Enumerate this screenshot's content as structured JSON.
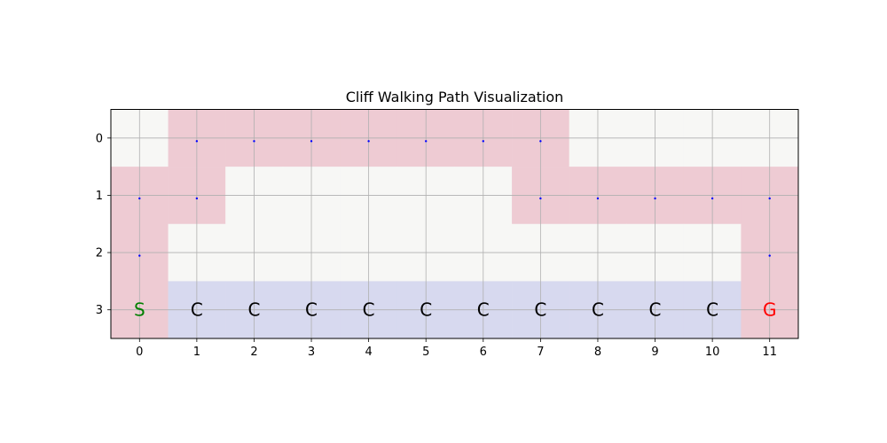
{
  "chart_data": {
    "type": "heatmap",
    "title": "Cliff Walking Path Visualization",
    "rows": 4,
    "cols": 12,
    "x_ticks": [
      "0",
      "1",
      "2",
      "3",
      "4",
      "5",
      "6",
      "7",
      "8",
      "9",
      "10",
      "11"
    ],
    "y_ticks": [
      "0",
      "1",
      "2",
      "3"
    ],
    "grid": true,
    "colors": {
      "empty": "#f7f7f5",
      "path": "#eecbd3",
      "cliff": "#d7d9ef",
      "start_text": "#008000",
      "goal_text": "#ff0000",
      "cliff_text": "#000000",
      "marker": "#0000ff",
      "grid": "#b0b0b0"
    },
    "cells": [
      [
        "empty",
        "path",
        "path",
        "path",
        "path",
        "path",
        "path",
        "path",
        "empty",
        "empty",
        "empty",
        "empty"
      ],
      [
        "path",
        "path",
        "empty",
        "empty",
        "empty",
        "empty",
        "empty",
        "path",
        "path",
        "path",
        "path",
        "path"
      ],
      [
        "path",
        "empty",
        "empty",
        "empty",
        "empty",
        "empty",
        "empty",
        "empty",
        "empty",
        "empty",
        "empty",
        "path"
      ],
      [
        "path",
        "cliff",
        "cliff",
        "cliff",
        "cliff",
        "cliff",
        "cliff",
        "cliff",
        "cliff",
        "cliff",
        "cliff",
        "path"
      ]
    ],
    "path_markers": [
      [
        1,
        0
      ],
      [
        2,
        0
      ],
      [
        3,
        0
      ],
      [
        4,
        0
      ],
      [
        5,
        0
      ],
      [
        6,
        0
      ],
      [
        7,
        0
      ],
      [
        0,
        1
      ],
      [
        1,
        1
      ],
      [
        7,
        1
      ],
      [
        8,
        1
      ],
      [
        9,
        1
      ],
      [
        10,
        1
      ],
      [
        11,
        1
      ],
      [
        0,
        2
      ],
      [
        11,
        2
      ]
    ],
    "cell_labels": [
      {
        "col": 0,
        "row": 3,
        "text": "S",
        "kind": "start"
      },
      {
        "col": 1,
        "row": 3,
        "text": "C",
        "kind": "cliff"
      },
      {
        "col": 2,
        "row": 3,
        "text": "C",
        "kind": "cliff"
      },
      {
        "col": 3,
        "row": 3,
        "text": "C",
        "kind": "cliff"
      },
      {
        "col": 4,
        "row": 3,
        "text": "C",
        "kind": "cliff"
      },
      {
        "col": 5,
        "row": 3,
        "text": "C",
        "kind": "cliff"
      },
      {
        "col": 6,
        "row": 3,
        "text": "C",
        "kind": "cliff"
      },
      {
        "col": 7,
        "row": 3,
        "text": "C",
        "kind": "cliff"
      },
      {
        "col": 8,
        "row": 3,
        "text": "C",
        "kind": "cliff"
      },
      {
        "col": 9,
        "row": 3,
        "text": "C",
        "kind": "cliff"
      },
      {
        "col": 10,
        "row": 3,
        "text": "C",
        "kind": "cliff"
      },
      {
        "col": 11,
        "row": 3,
        "text": "G",
        "kind": "goal"
      }
    ]
  }
}
